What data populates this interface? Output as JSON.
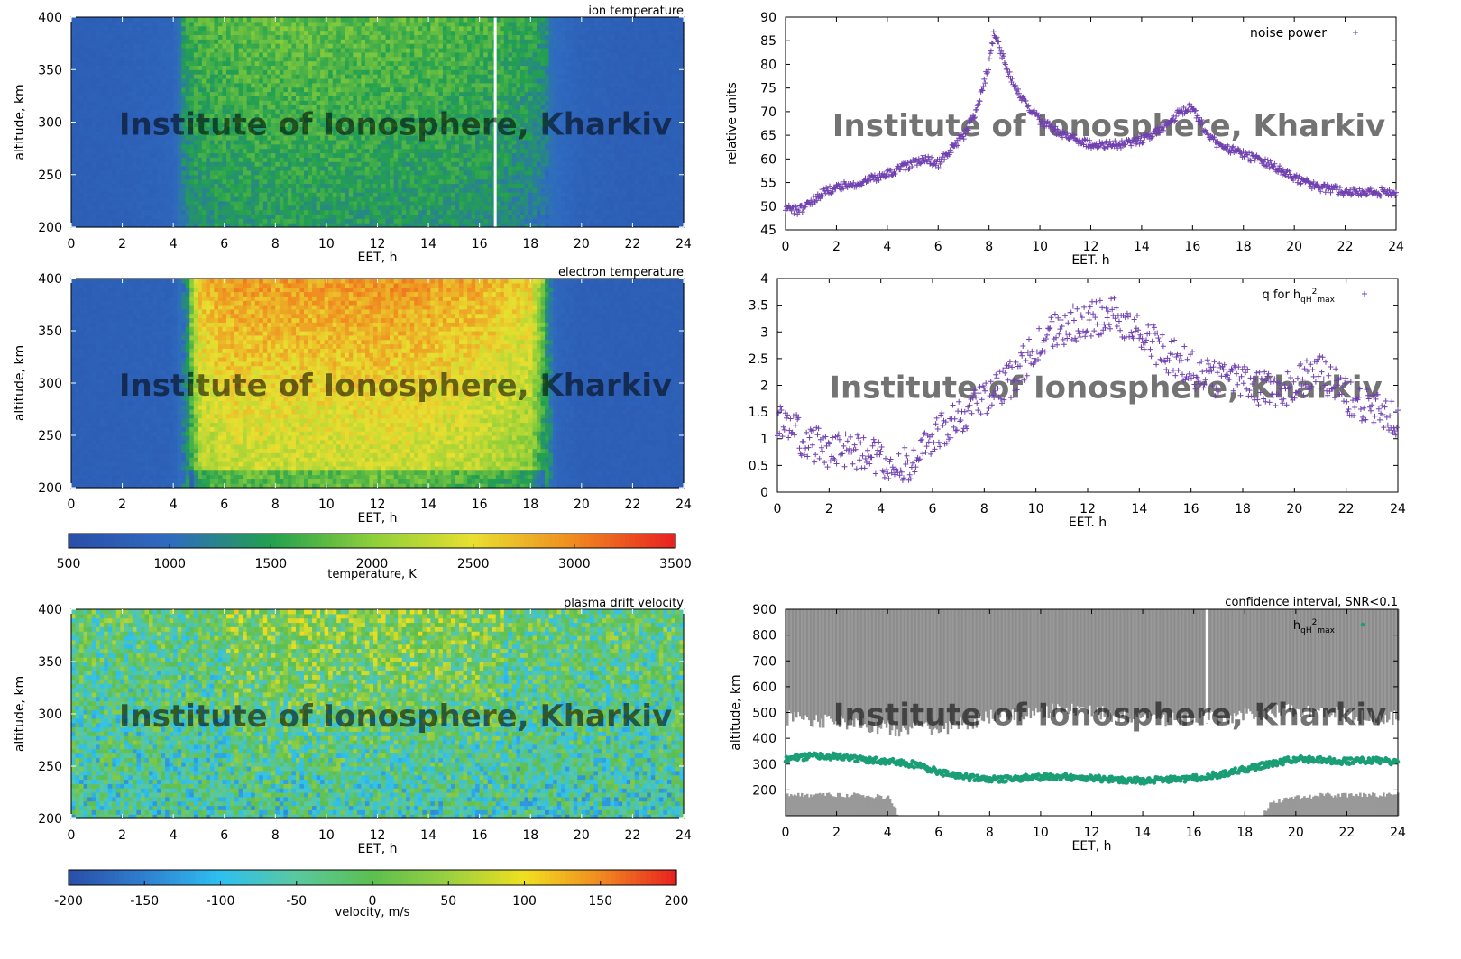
{
  "watermark": "Institute of Ionosphere, Kharkiv",
  "chart_data": [
    {
      "id": "ion_temp",
      "type": "heatmap",
      "title": "ion temperature",
      "xlabel": "EET, h",
      "ylabel": "altitude, km",
      "xlim": [
        0,
        24
      ],
      "ylim": [
        200,
        400
      ],
      "xticks": [
        "0",
        "2",
        "4",
        "6",
        "8",
        "10",
        "12",
        "14",
        "16",
        "18",
        "20",
        "22",
        "24"
      ],
      "yticks": [
        "200",
        "250",
        "300",
        "350",
        "400"
      ],
      "colorbar": "temperature",
      "time_h": [
        0,
        2,
        4,
        4.5,
        5,
        6,
        8,
        10,
        12,
        14,
        16,
        18,
        19,
        20,
        22,
        24
      ],
      "values_K": [
        800,
        820,
        900,
        1300,
        1450,
        1500,
        1550,
        1550,
        1520,
        1500,
        1450,
        1300,
        1000,
        850,
        800,
        800
      ],
      "gap_h": 16.6
    },
    {
      "id": "noise",
      "type": "scatter",
      "title": "noise power",
      "xlabel": "EET. h",
      "ylabel": "relative units",
      "xlim": [
        0,
        24
      ],
      "ylim": [
        45,
        90
      ],
      "xticks": [
        "0",
        "2",
        "4",
        "6",
        "8",
        "10",
        "12",
        "14",
        "16",
        "18",
        "20",
        "22",
        "24"
      ],
      "yticks": [
        "45",
        "50",
        "55",
        "60",
        "65",
        "70",
        "75",
        "80",
        "85",
        "90"
      ],
      "legend": "noise power",
      "x": [
        0,
        0.5,
        1,
        1.5,
        2,
        3,
        4,
        5,
        5.5,
        6,
        6.5,
        7,
        7.5,
        8,
        8.2,
        8.5,
        9,
        10,
        11,
        12,
        13,
        14,
        15,
        15.5,
        16,
        16.5,
        17,
        18,
        19,
        20,
        21,
        22,
        23,
        24
      ],
      "y": [
        50,
        49,
        51,
        53,
        54,
        55,
        57,
        59,
        60,
        59,
        62,
        65,
        70,
        80,
        87,
        82,
        75,
        68,
        65,
        63,
        63,
        64,
        67,
        70,
        71,
        66,
        63,
        61,
        59,
        56,
        54,
        53,
        53,
        53
      ]
    },
    {
      "id": "elec_temp",
      "type": "heatmap",
      "title": "electron temperature",
      "xlabel": "EET, h",
      "ylabel": "altitude, km",
      "xlim": [
        0,
        24
      ],
      "ylim": [
        200,
        400
      ],
      "xticks": [
        "0",
        "2",
        "4",
        "6",
        "8",
        "10",
        "12",
        "14",
        "16",
        "18",
        "20",
        "22",
        "24"
      ],
      "yticks": [
        "200",
        "250",
        "300",
        "350",
        "400"
      ],
      "colorbar": "temperature",
      "time_h": [
        0,
        2,
        4,
        4.5,
        5,
        6,
        8,
        10,
        12,
        14,
        16,
        18,
        18.5,
        19,
        20,
        22,
        24
      ],
      "values_K": [
        800,
        820,
        850,
        1200,
        2300,
        2500,
        2500,
        2500,
        2550,
        2500,
        2400,
        2200,
        1600,
        900,
        800,
        800,
        800
      ]
    },
    {
      "id": "q",
      "type": "scatter",
      "title": "q for h_qH2max",
      "xlabel": "EET. h",
      "ylabel": "",
      "xlim": [
        0,
        24
      ],
      "ylim": [
        0,
        4
      ],
      "xticks": [
        "0",
        "2",
        "4",
        "6",
        "8",
        "10",
        "12",
        "14",
        "16",
        "18",
        "20",
        "22",
        "24"
      ],
      "yticks": [
        "0",
        "0.5",
        "1",
        "1.5",
        "2",
        "2.5",
        "3",
        "3.5",
        "4"
      ],
      "legend": {
        "base": "q for h",
        "sub": "qH",
        "sup": "2",
        "sub2": "max"
      },
      "x": [
        0,
        1,
        2,
        3,
        4,
        4.5,
        5,
        6,
        7,
        8,
        9,
        10,
        11,
        12,
        13,
        14,
        15,
        16,
        17,
        18,
        19,
        20,
        21,
        22,
        23,
        24
      ],
      "y": [
        1.4,
        1.0,
        0.8,
        0.75,
        0.6,
        0.45,
        0.5,
        1.0,
        1.4,
        1.7,
        2.1,
        2.7,
        3.1,
        3.2,
        3.3,
        3.0,
        2.6,
        2.3,
        2.1,
        2.1,
        1.9,
        2.0,
        2.3,
        1.8,
        1.6,
        1.4
      ]
    },
    {
      "id": "drift",
      "type": "heatmap",
      "title": "plasma drift velocity",
      "xlabel": "EET, h",
      "ylabel": "altitude, km",
      "xlim": [
        0,
        24
      ],
      "ylim": [
        200,
        400
      ],
      "xticks": [
        "0",
        "2",
        "4",
        "6",
        "8",
        "10",
        "12",
        "14",
        "16",
        "18",
        "20",
        "22",
        "24"
      ],
      "yticks": [
        "200",
        "250",
        "300",
        "350",
        "400"
      ],
      "colorbar": "velocity",
      "typical_ms": [
        -50,
        20
      ]
    },
    {
      "id": "hmax",
      "type": "scatter",
      "title": "confidence interval, SNR<0.1",
      "xlabel": "EET, h",
      "ylabel": "altitude, km",
      "xlim": [
        0,
        24
      ],
      "ylim": [
        100,
        900
      ],
      "xticks": [
        "0",
        "2",
        "4",
        "6",
        "8",
        "10",
        "12",
        "14",
        "16",
        "18",
        "20",
        "22",
        "24"
      ],
      "yticks": [
        "200",
        "300",
        "400",
        "500",
        "600",
        "700",
        "800",
        "900"
      ],
      "legend": {
        "base": "h",
        "sub": "qH",
        "sup": "2",
        "sub2": "max"
      },
      "x": [
        0,
        1,
        2,
        3,
        4,
        5,
        6,
        7,
        8,
        9,
        10,
        11,
        12,
        13,
        14,
        15,
        16,
        17,
        18,
        19,
        20,
        21,
        22,
        23,
        24
      ],
      "y": [
        320,
        330,
        330,
        320,
        310,
        300,
        270,
        250,
        240,
        245,
        250,
        250,
        245,
        240,
        235,
        240,
        245,
        260,
        280,
        300,
        320,
        315,
        310,
        315,
        310
      ],
      "upper_boundary_km": [
        480,
        470,
        460,
        450,
        440,
        430,
        440,
        460,
        480,
        490,
        500,
        520,
        500,
        490,
        480,
        470,
        480,
        480,
        490,
        500,
        510,
        500,
        490,
        480,
        480
      ],
      "lower_shading_km": [
        180,
        180,
        180,
        180,
        170,
        0,
        0,
        0,
        0,
        0,
        0,
        0,
        0,
        0,
        0,
        0,
        0,
        0,
        0,
        150,
        170,
        180,
        180,
        180,
        180
      ],
      "gap_h": 16.5
    }
  ],
  "colorbars": {
    "temperature": {
      "label": "temperature, K",
      "ticks": [
        "500",
        "1000",
        "1500",
        "2000",
        "2500",
        "3000",
        "3500"
      ],
      "range": [
        500,
        3500
      ],
      "colors": [
        "#2a4ea8",
        "#2f6bc0",
        "#22a050",
        "#8ecf3a",
        "#e8e030",
        "#f08a20",
        "#e82020"
      ]
    },
    "velocity": {
      "label": "velocity, m/s",
      "ticks": [
        "-200",
        "-150",
        "-100",
        "-50",
        "0",
        "50",
        "100",
        "150",
        "200"
      ],
      "range": [
        -200,
        200
      ],
      "colors": [
        "#2a4ea8",
        "#2f7fd0",
        "#2ec0f0",
        "#5ac8a0",
        "#5cbf50",
        "#9bd040",
        "#f0e020",
        "#f08a20",
        "#e82020"
      ]
    }
  }
}
